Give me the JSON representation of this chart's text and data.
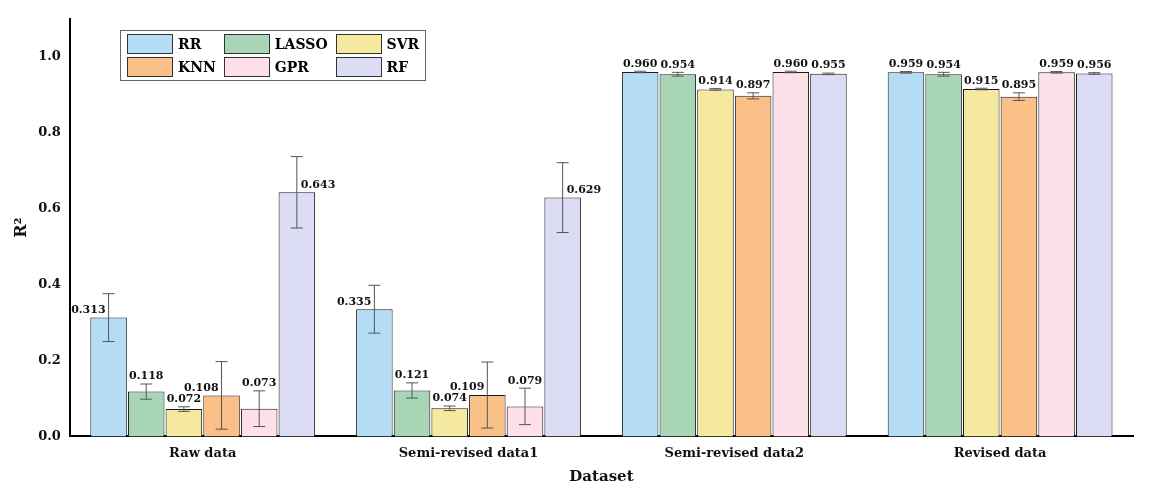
{
  "chart_data": {
    "type": "bar",
    "xlabel": "Dataset",
    "ylabel": "R²",
    "categories": [
      "Raw data",
      "Semi-revised data1",
      "Semi-revised data2",
      "Revised data"
    ],
    "series": [
      {
        "name": "RR",
        "color": "#b4dcf5",
        "values": [
          0.313,
          0.335,
          0.96,
          0.959
        ],
        "errors": [
          0.063,
          0.063,
          0.002,
          0.002
        ],
        "value_labels": [
          "0.313",
          "0.335",
          "0.960",
          "0.959"
        ]
      },
      {
        "name": "LASSO",
        "color": "#a8d5b5",
        "values": [
          0.118,
          0.121,
          0.954,
          0.954
        ],
        "errors": [
          0.02,
          0.02,
          0.005,
          0.005
        ],
        "value_labels": [
          "0.118",
          "0.121",
          "0.954",
          "0.954"
        ]
      },
      {
        "name": "SVR",
        "color": "#f5e9a0",
        "values": [
          0.072,
          0.074,
          0.914,
          0.915
        ],
        "errors": [
          0.006,
          0.006,
          0.002,
          0.002
        ],
        "value_labels": [
          "0.072",
          "0.074",
          "0.914",
          "0.915"
        ]
      },
      {
        "name": "KNN",
        "color": "#f9c088",
        "values": [
          0.108,
          0.109,
          0.897,
          0.895
        ],
        "errors": [
          0.089,
          0.087,
          0.008,
          0.01
        ],
        "value_labels": [
          "0.108",
          "0.109",
          "0.897",
          "0.895"
        ]
      },
      {
        "name": "GPR",
        "color": "#fde0e8",
        "values": [
          0.073,
          0.079,
          0.96,
          0.959
        ],
        "errors": [
          0.047,
          0.048,
          0.002,
          0.002
        ],
        "value_labels": [
          "0.073",
          "0.079",
          "0.960",
          "0.959"
        ]
      },
      {
        "name": "RF",
        "color": "#dcdcf5",
        "values": [
          0.643,
          0.629,
          0.955,
          0.956
        ],
        "errors": [
          0.094,
          0.092,
          0.002,
          0.002
        ],
        "value_labels": [
          "0.643",
          "0.629",
          "0.955",
          "0.956"
        ]
      }
    ],
    "ylim": [
      0,
      1.1
    ],
    "yticks": [
      {
        "value": 0,
        "label": "0.0"
      },
      {
        "value": 0.2,
        "label": "0.2"
      },
      {
        "value": 0.4,
        "label": "0.4"
      },
      {
        "value": 0.6,
        "label": "0.6"
      },
      {
        "value": 0.8,
        "label": "0.8"
      },
      {
        "value": 1,
        "label": "1.0"
      }
    ],
    "grid": false,
    "legend": "top left"
  }
}
